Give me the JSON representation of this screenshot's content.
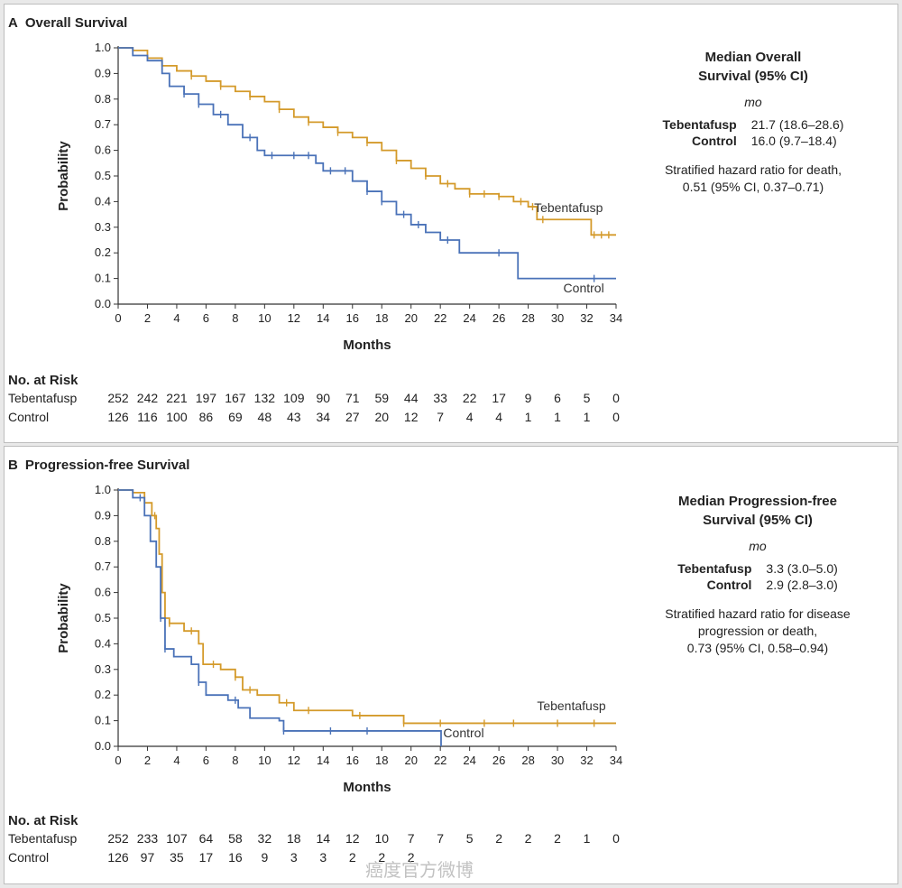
{
  "panels": [
    {
      "letter": "A",
      "title": "Overall Survival",
      "ylabel": "Probability",
      "xlabel": "Months",
      "median_header": [
        "Median Overall",
        "Survival (95% CI)"
      ],
      "median_unit": "mo",
      "medians": [
        {
          "group": "Tebentafusp",
          "value": "21.7 (18.6–28.6)"
        },
        {
          "group": "Control",
          "value": "16.0 (9.7–18.4)"
        }
      ],
      "hazard_text": [
        "Stratified hazard ratio for death,",
        "0.51 (95% CI, 0.37–0.71)"
      ],
      "risk_header": "No. at Risk",
      "risk_rows": [
        {
          "group": "Tebentafusp",
          "values": [
            "252",
            "242",
            "221",
            "197",
            "167",
            "132",
            "109",
            "90",
            "71",
            "59",
            "44",
            "33",
            "22",
            "17",
            "9",
            "6",
            "5",
            "0"
          ]
        },
        {
          "group": "Control",
          "values": [
            "126",
            "116",
            "100",
            "86",
            "69",
            "48",
            "43",
            "34",
            "27",
            "20",
            "12",
            "7",
            "4",
            "4",
            "1",
            "1",
            "1",
            "0"
          ]
        }
      ]
    },
    {
      "letter": "B",
      "title": "Progression-free Survival",
      "ylabel": "Probability",
      "xlabel": "Months",
      "median_header": [
        "Median Progression-free",
        "Survival (95% CI)"
      ],
      "median_unit": "mo",
      "medians": [
        {
          "group": "Tebentafusp",
          "value": "3.3 (3.0–5.0)"
        },
        {
          "group": "Control",
          "value": "2.9 (2.8–3.0)"
        }
      ],
      "hazard_text": [
        "Stratified hazard ratio for disease",
        "progression or death,",
        "0.73 (95% CI, 0.58–0.94)"
      ],
      "risk_header": "No. at Risk",
      "risk_rows": [
        {
          "group": "Tebentafusp",
          "values": [
            "252",
            "233",
            "107",
            "64",
            "58",
            "32",
            "18",
            "14",
            "12",
            "10",
            "7",
            "7",
            "5",
            "2",
            "2",
            "2",
            "1",
            "0"
          ]
        },
        {
          "group": "Control",
          "values": [
            "126",
            "97",
            "35",
            "17",
            "16",
            "9",
            "3",
            "3",
            "2",
            "2",
            "2",
            "",
            "",
            "",
            "",
            "",
            "",
            ""
          ]
        }
      ]
    }
  ],
  "chart_data": [
    {
      "type": "line",
      "title": "Overall Survival",
      "xlabel": "Months",
      "ylabel": "Probability",
      "xlim": [
        0,
        34
      ],
      "ylim": [
        0,
        1.0
      ],
      "xticks": [
        0,
        2,
        4,
        6,
        8,
        10,
        12,
        14,
        16,
        18,
        20,
        22,
        24,
        26,
        28,
        30,
        32,
        34
      ],
      "yticks": [
        "0.0",
        "0.1",
        "0.2",
        "0.3",
        "0.4",
        "0.5",
        "0.6",
        "0.7",
        "0.8",
        "0.9",
        "1.0"
      ],
      "step": true,
      "series": [
        {
          "name": "Tebentafusp",
          "color": "#d49a2a",
          "points": [
            [
              0,
              1.0
            ],
            [
              1,
              0.99
            ],
            [
              2,
              0.96
            ],
            [
              3,
              0.93
            ],
            [
              4,
              0.91
            ],
            [
              5,
              0.89
            ],
            [
              6,
              0.87
            ],
            [
              7,
              0.85
            ],
            [
              8,
              0.83
            ],
            [
              9,
              0.81
            ],
            [
              10,
              0.79
            ],
            [
              11,
              0.76
            ],
            [
              12,
              0.73
            ],
            [
              13,
              0.71
            ],
            [
              14,
              0.69
            ],
            [
              15,
              0.67
            ],
            [
              16,
              0.65
            ],
            [
              17,
              0.63
            ],
            [
              18,
              0.6
            ],
            [
              19,
              0.56
            ],
            [
              20,
              0.53
            ],
            [
              21,
              0.5
            ],
            [
              22,
              0.47
            ],
            [
              23,
              0.45
            ],
            [
              24,
              0.43
            ],
            [
              26,
              0.42
            ],
            [
              27,
              0.4
            ],
            [
              28,
              0.38
            ],
            [
              28.6,
              0.33
            ],
            [
              32,
              0.33
            ],
            [
              32.3,
              0.27
            ],
            [
              34,
              0.27
            ]
          ],
          "censor_x": [
            3,
            5,
            7,
            9,
            11,
            13,
            15,
            17,
            19,
            21,
            22.5,
            24,
            25,
            26,
            27.5,
            28.3,
            29,
            32.5,
            33,
            33.5
          ]
        },
        {
          "name": "Control",
          "color": "#4a72b8",
          "points": [
            [
              0,
              1.0
            ],
            [
              1,
              0.97
            ],
            [
              2,
              0.95
            ],
            [
              3,
              0.9
            ],
            [
              3.5,
              0.85
            ],
            [
              4.5,
              0.82
            ],
            [
              5.5,
              0.78
            ],
            [
              6.5,
              0.74
            ],
            [
              7.5,
              0.7
            ],
            [
              8.5,
              0.65
            ],
            [
              9.5,
              0.6
            ],
            [
              10,
              0.58
            ],
            [
              13.5,
              0.55
            ],
            [
              14,
              0.52
            ],
            [
              16,
              0.48
            ],
            [
              17,
              0.44
            ],
            [
              18,
              0.4
            ],
            [
              19,
              0.35
            ],
            [
              20,
              0.31
            ],
            [
              21,
              0.28
            ],
            [
              22,
              0.25
            ],
            [
              23.3,
              0.2
            ],
            [
              27.3,
              0.1
            ],
            [
              34,
              0.1
            ]
          ],
          "censor_x": [
            4.5,
            5.5,
            7,
            9,
            10.5,
            12,
            13,
            14.5,
            15.5,
            17,
            18,
            19.5,
            20.5,
            22.5,
            26,
            32.5
          ]
        }
      ],
      "annotations": [
        {
          "text": "Tebentafusp",
          "x": 28.4,
          "y": 0.36
        },
        {
          "text": "Control",
          "x": 30.4,
          "y": 0.045
        }
      ]
    },
    {
      "type": "line",
      "title": "Progression-free Survival",
      "xlabel": "Months",
      "ylabel": "Probability",
      "xlim": [
        0,
        34
      ],
      "ylim": [
        0,
        1.0
      ],
      "xticks": [
        0,
        2,
        4,
        6,
        8,
        10,
        12,
        14,
        16,
        18,
        20,
        22,
        24,
        26,
        28,
        30,
        32,
        34
      ],
      "yticks": [
        "0.0",
        "0.1",
        "0.2",
        "0.3",
        "0.4",
        "0.5",
        "0.6",
        "0.7",
        "0.8",
        "0.9",
        "1.0"
      ],
      "step": true,
      "series": [
        {
          "name": "Tebentafusp",
          "color": "#d49a2a",
          "points": [
            [
              0,
              1.0
            ],
            [
              1,
              0.99
            ],
            [
              1.8,
              0.95
            ],
            [
              2.3,
              0.9
            ],
            [
              2.6,
              0.85
            ],
            [
              2.8,
              0.75
            ],
            [
              3,
              0.6
            ],
            [
              3.2,
              0.5
            ],
            [
              3.5,
              0.48
            ],
            [
              4.5,
              0.45
            ],
            [
              5.5,
              0.4
            ],
            [
              5.8,
              0.32
            ],
            [
              7,
              0.3
            ],
            [
              8,
              0.27
            ],
            [
              8.5,
              0.22
            ],
            [
              9.5,
              0.2
            ],
            [
              11,
              0.17
            ],
            [
              12,
              0.14
            ],
            [
              16,
              0.12
            ],
            [
              19.5,
              0.09
            ],
            [
              34,
              0.09
            ]
          ],
          "censor_x": [
            2.5,
            3.5,
            5,
            6.5,
            8,
            9,
            11.5,
            13,
            16.5,
            19.5,
            22,
            25,
            27,
            30,
            32.5
          ]
        },
        {
          "name": "Control",
          "color": "#4a72b8",
          "points": [
            [
              0,
              1.0
            ],
            [
              1,
              0.97
            ],
            [
              1.8,
              0.9
            ],
            [
              2.2,
              0.8
            ],
            [
              2.6,
              0.7
            ],
            [
              2.9,
              0.5
            ],
            [
              3.2,
              0.38
            ],
            [
              3.8,
              0.35
            ],
            [
              5,
              0.32
            ],
            [
              5.5,
              0.25
            ],
            [
              6,
              0.2
            ],
            [
              7.5,
              0.18
            ],
            [
              8.2,
              0.15
            ],
            [
              9,
              0.11
            ],
            [
              11,
              0.1
            ],
            [
              11.3,
              0.06
            ],
            [
              22,
              0.06
            ],
            [
              22.05,
              0.0
            ]
          ],
          "censor_x": [
            1.5,
            2.9,
            3.2,
            5.5,
            8,
            11.3,
            14.5,
            17
          ]
        }
      ],
      "annotations": [
        {
          "text": "Tebentafusp",
          "x": 28.6,
          "y": 0.14
        },
        {
          "text": "Control",
          "x": 22.2,
          "y": 0.035
        }
      ]
    }
  ],
  "watermark": "癌度官方微博"
}
